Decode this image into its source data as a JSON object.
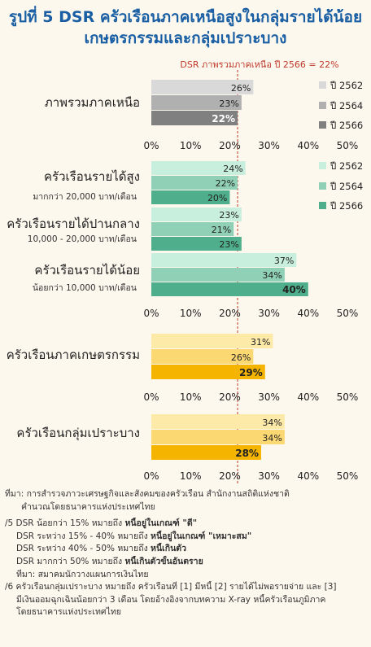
{
  "title": {
    "line1": "รูปที่ 5 DSR ครัวเรือนภาคเหนือสูงในกลุ่มรายได้น้อย",
    "line2": "เกษตรกรรมและกลุ่มเปราะบาง"
  },
  "colors": {
    "region": [
      "#d9d9d9",
      "#b0b0b0",
      "#808080"
    ],
    "income": [
      "#c8eedd",
      "#8fd0b6",
      "#4fae8b"
    ],
    "low": [
      "#fde9a8",
      "#fcd873",
      "#f5b400"
    ],
    "ref_line": "#c0392b"
  },
  "chart_data": [
    {
      "type": "bar",
      "orientation": "horizontal",
      "categories": [
        {
          "label": "ภาพรวมภาคเหนือ",
          "sub": ""
        }
      ],
      "series": [
        {
          "name": "ปี 2562",
          "values": [
            26
          ]
        },
        {
          "name": "ปี 2564",
          "values": [
            23
          ]
        },
        {
          "name": "ปี 2566",
          "values": [
            22
          ]
        }
      ],
      "value_labels": [
        "26%",
        "23%",
        "22%"
      ],
      "xlim": [
        0,
        50
      ],
      "xticks": [
        "0%",
        "10%",
        "20%",
        "30%",
        "40%",
        "50%"
      ],
      "reference_line": {
        "value": 22,
        "label": "DSR ภาพรวมภาคเหนือ ปี 2566 = 22%"
      },
      "legend": "right",
      "color_key": "region"
    },
    {
      "type": "bar",
      "orientation": "horizontal",
      "categories": [
        {
          "label": "ครัวเรือนรายได้สูง",
          "sub": "มากกว่า 20,000 บาท/เดือน"
        },
        {
          "label": "ครัวเรือนรายได้ปานกลาง",
          "sub": "10,000 - 20,000 บาท/เดือน"
        },
        {
          "label": "ครัวเรือนรายได้น้อย",
          "sub": "น้อยกว่า 10,000 บาท/เดือน"
        }
      ],
      "series": [
        {
          "name": "ปี 2562",
          "values": [
            24,
            23,
            37
          ]
        },
        {
          "name": "ปี 2564",
          "values": [
            22,
            21,
            34
          ]
        },
        {
          "name": "ปี 2566",
          "values": [
            20,
            23,
            40
          ]
        }
      ],
      "xlim": [
        0,
        50
      ],
      "xticks": [
        "0%",
        "10%",
        "20%",
        "30%",
        "40%",
        "50%"
      ],
      "reference_line": {
        "value": 22
      },
      "legend": "right",
      "color_key": "income",
      "highlight_category": 2
    },
    {
      "type": "bar",
      "orientation": "horizontal",
      "categories": [
        {
          "label": "ครัวเรือนภาคเกษตรกรรม",
          "sub": ""
        }
      ],
      "series": [
        {
          "name": "ปี 2562",
          "values": [
            31
          ]
        },
        {
          "name": "ปี 2564",
          "values": [
            26
          ]
        },
        {
          "name": "ปี 2566",
          "values": [
            29
          ]
        }
      ],
      "xlim": [
        0,
        50
      ],
      "xticks": [
        "0%",
        "10%",
        "20%",
        "30%",
        "40%",
        "50%"
      ],
      "reference_line": {
        "value": 22
      },
      "color_key": "low"
    },
    {
      "type": "bar",
      "orientation": "horizontal",
      "categories": [
        {
          "label": "ครัวเรือนกลุ่มเปราะบาง",
          "sub": ""
        }
      ],
      "series": [
        {
          "name": "ปี 2562",
          "values": [
            34
          ]
        },
        {
          "name": "ปี 2564",
          "values": [
            34
          ]
        },
        {
          "name": "ปี 2566",
          "values": [
            28
          ]
        }
      ],
      "xlim": [
        0,
        50
      ],
      "xticks": [
        "0%",
        "10%",
        "20%",
        "30%",
        "40%",
        "50%"
      ],
      "reference_line": {
        "value": 22
      },
      "color_key": "low"
    }
  ],
  "notes": {
    "source1": "ที่มา: การสำรวจภาวะเศรษฐกิจและสังคมของครัวเรือน สำนักงานสถิติแห่งชาติ",
    "source1b": "คำนวณโดยธนาคารแห่งประเทศไทย",
    "n5": "/5 DSR น้อยกว่า 15% หมายถึง ",
    "n5b": "หนี้อยู่ในเกณฑ์ \"ดี\"",
    "n5c": "DSR ระหว่าง 15% - 40% หมายถึง ",
    "n5cb": "หนี้อยู่ในเกณฑ์ \"เหมาะสม\"",
    "n5d": "DSR ระหว่าง 40% - 50% หมายถึง ",
    "n5db": "หนี้เกินตัว",
    "n5e": "DSR มากกว่า 50% หมายถึง ",
    "n5eb": "หนี้เกินตัวขั้นอันตราย",
    "n5f": "ที่มา: สมาคมนักวางแผนการเงินไทย",
    "n6": "/6 ครัวเรือนกลุ่มเปราะบาง หมายถึง ครัวเรือนที่ [1] มีหนี้ [2] รายได้ไม่พอรายจ่าย และ [3]",
    "n6b": "มีเงินออมฉุกเฉินน้อยกว่า 3 เดือน โดยอ้างอิงจากบทความ X-ray หนี้ครัวเรือนภูมิภาค",
    "n6c": "โดยธนาคารแห่งประเทศไทย"
  }
}
